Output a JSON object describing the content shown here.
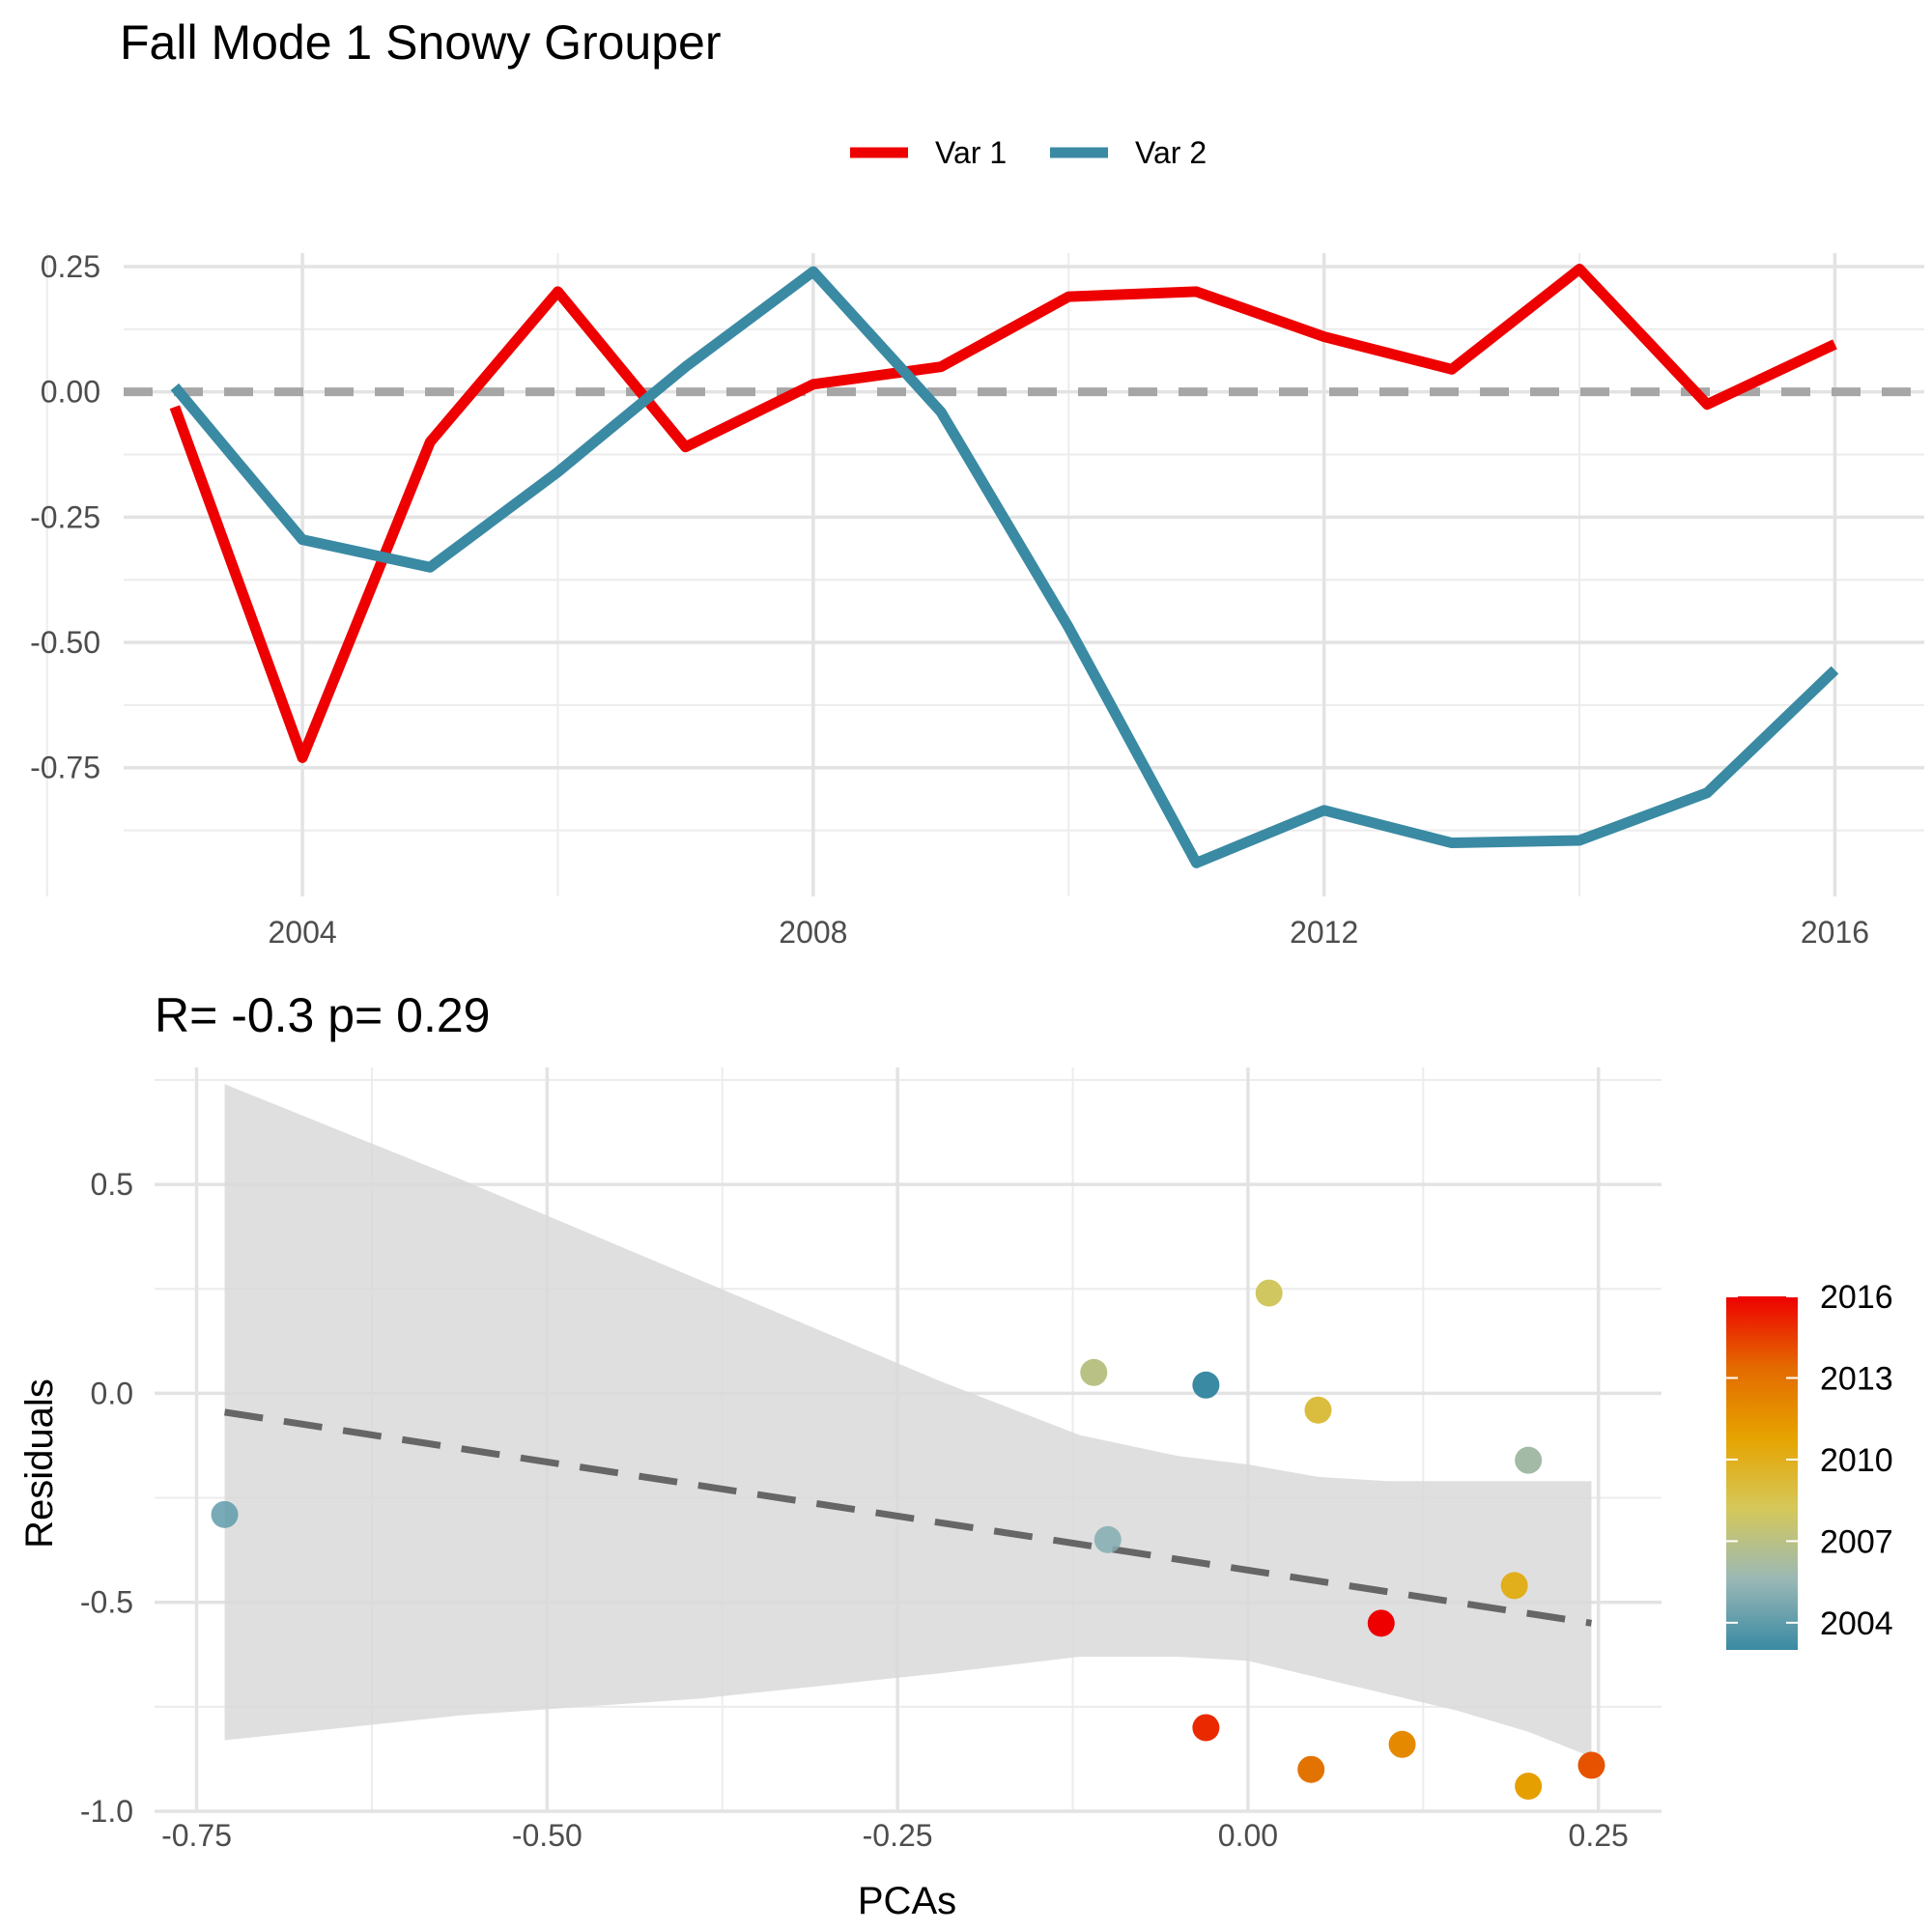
{
  "title": "Fall Mode 1 Snowy Grouper",
  "chart_data": [
    {
      "type": "line",
      "x": [
        2003,
        2004,
        2005,
        2006,
        2007,
        2008,
        2009,
        2010,
        2011,
        2012,
        2013,
        2014,
        2015,
        2016
      ],
      "series": [
        {
          "name": "Var 1",
          "color": "#ee0000",
          "values": [
            -0.03,
            -0.73,
            -0.1,
            0.2,
            -0.11,
            0.015,
            0.05,
            0.19,
            0.2,
            0.11,
            0.045,
            0.245,
            -0.025,
            0.095
          ]
        },
        {
          "name": "Var 2",
          "color": "#3a8aa3",
          "values": [
            0.01,
            -0.295,
            -0.35,
            -0.16,
            0.05,
            0.24,
            -0.04,
            -0.47,
            -0.94,
            -0.835,
            -0.9,
            -0.895,
            -0.8,
            -0.555
          ]
        }
      ],
      "xticks": [
        "2004",
        "2008",
        "2012",
        "2016"
      ],
      "yticks": [
        "0.25",
        "0.00",
        "-0.25",
        "-0.50",
        "-0.75"
      ],
      "xlim": [
        2002.6,
        2016.7
      ],
      "ylim": [
        -1.03,
        0.3
      ],
      "reference_line": 0,
      "legend_position": "top",
      "grid": true
    },
    {
      "type": "scatter",
      "subtitle": "R= -0.3  p= 0.29",
      "xlabel": "PCAs",
      "ylabel": "Residuals",
      "xticks": [
        "-0.75",
        "-0.50",
        "-0.25",
        "0.00",
        "0.25"
      ],
      "yticks": [
        "0.5",
        "0.0",
        "-0.5",
        "-1.0"
      ],
      "xlim": [
        -0.78,
        0.295
      ],
      "ylim": [
        -1.0,
        0.78
      ],
      "points": [
        {
          "year": 2003,
          "x": -0.03,
          "y": 0.02
        },
        {
          "year": 2004,
          "x": -0.73,
          "y": -0.29
        },
        {
          "year": 2005,
          "x": -0.1,
          "y": -0.35
        },
        {
          "year": 2006,
          "x": 0.2,
          "y": -0.16
        },
        {
          "year": 2007,
          "x": -0.11,
          "y": 0.05
        },
        {
          "year": 2008,
          "x": 0.015,
          "y": 0.24
        },
        {
          "year": 2009,
          "x": 0.05,
          "y": -0.04
        },
        {
          "year": 2010,
          "x": 0.19,
          "y": -0.46
        },
        {
          "year": 2011,
          "x": 0.2,
          "y": -0.94
        },
        {
          "year": 2012,
          "x": 0.11,
          "y": -0.84
        },
        {
          "year": 2013,
          "x": 0.045,
          "y": -0.9
        },
        {
          "year": 2014,
          "x": 0.245,
          "y": -0.89
        },
        {
          "year": 2015,
          "x": -0.03,
          "y": -0.8
        },
        {
          "year": 2016,
          "x": 0.095,
          "y": -0.55
        }
      ],
      "fit": {
        "x": [
          -0.73,
          0.245
        ],
        "y": [
          -0.045,
          -0.55
        ]
      },
      "confidence_band": {
        "x": [
          -0.73,
          -0.56,
          -0.39,
          -0.22,
          -0.12,
          -0.05,
          0.0,
          0.05,
          0.1,
          0.15,
          0.2,
          0.245
        ],
        "upper": [
          0.74,
          0.51,
          0.27,
          0.03,
          -0.1,
          -0.15,
          -0.17,
          -0.2,
          -0.21,
          -0.21,
          -0.21,
          -0.21
        ],
        "lower": [
          -0.83,
          -0.77,
          -0.73,
          -0.67,
          -0.63,
          -0.63,
          -0.64,
          -0.68,
          -0.72,
          -0.76,
          -0.81,
          -0.87
        ]
      },
      "colorbar": {
        "labels": [
          "2016",
          "2013",
          "2010",
          "2007",
          "2004"
        ],
        "min_year": 2003,
        "max_year": 2016,
        "colors": [
          "#3a8aa3",
          "#9ab8b5",
          "#d5c85a",
          "#e6a300",
          "#e36a00",
          "#ee0000"
        ]
      },
      "grid": true
    }
  ]
}
